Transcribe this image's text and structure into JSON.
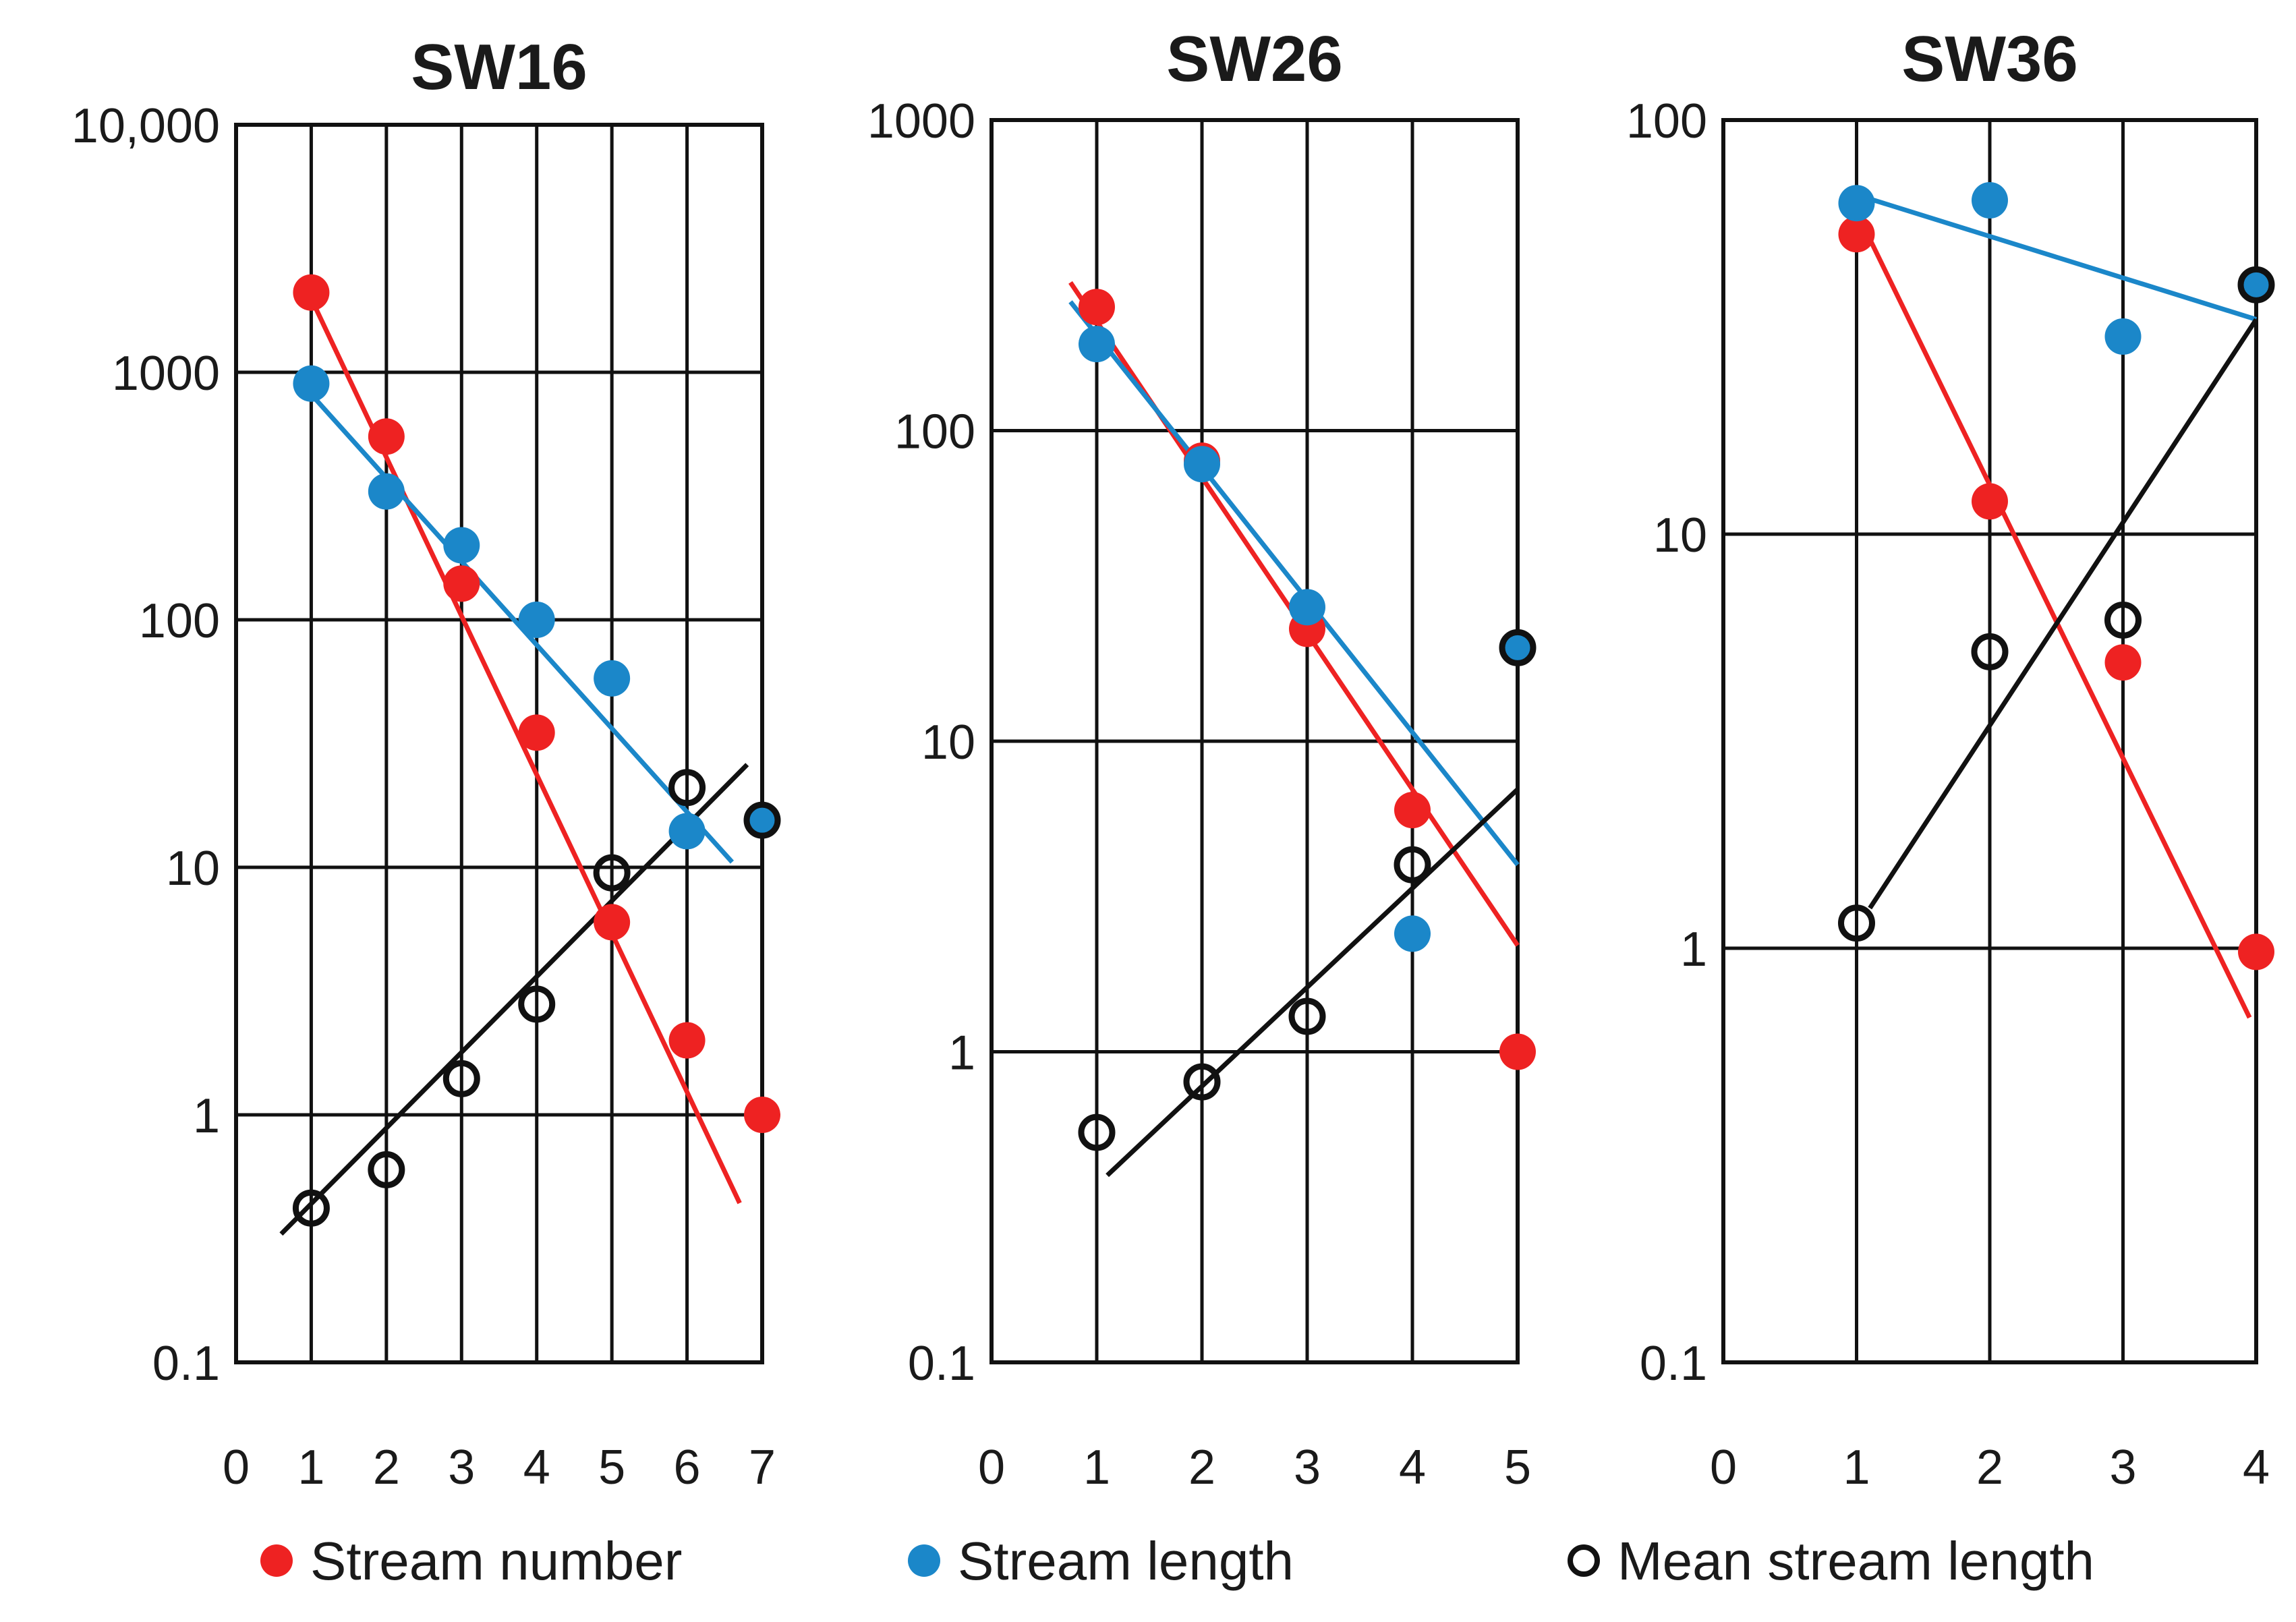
{
  "chart_data": [
    {
      "type": "scatter",
      "title": "SW16",
      "y_scale": "log",
      "ylim": [
        0.1,
        10000
      ],
      "xlim": [
        0,
        7
      ],
      "y_tick_labels": [
        "0.1",
        "1",
        "10",
        "100",
        "1000",
        "10,000"
      ],
      "x_tick_labels": [
        "0",
        "1",
        "2",
        "3",
        "4",
        "5",
        "6",
        "7"
      ],
      "series": [
        {
          "name": "Stream number",
          "color": "#ee2222",
          "marker": "filled",
          "x": [
            1,
            2,
            3,
            4,
            5,
            6,
            7
          ],
          "values": [
            2100,
            550,
            140,
            35,
            6,
            2,
            1
          ],
          "trend": {
            "x": [
              0.9,
              6.7
            ],
            "y": [
              2300,
              0.44
            ]
          }
        },
        {
          "name": "Stream length",
          "color": "#1b87c9",
          "marker": "filled",
          "x": [
            1,
            2,
            3,
            4,
            5,
            6,
            7
          ],
          "values": [
            900,
            330,
            200,
            100,
            58,
            14,
            15.5
          ],
          "trend": {
            "x": [
              0.9,
              6.6
            ],
            "y": [
              880,
              10.5
            ]
          }
        },
        {
          "name": "Mean stream length",
          "color": "#111111",
          "marker": "open",
          "x": [
            1,
            2,
            3,
            4,
            5,
            6,
            7
          ],
          "values": [
            0.42,
            0.6,
            1.4,
            2.8,
            9.5,
            21,
            15.5
          ],
          "trend": {
            "x": [
              0.6,
              6.8
            ],
            "y": [
              0.33,
              26
            ]
          }
        }
      ]
    },
    {
      "type": "scatter",
      "title": "SW26",
      "y_scale": "log",
      "ylim": [
        0.1,
        1000
      ],
      "xlim": [
        0,
        5
      ],
      "y_tick_labels": [
        "0.1",
        "1",
        "10",
        "100",
        "1000"
      ],
      "x_tick_labels": [
        "0",
        "1",
        "2",
        "3",
        "4",
        "5"
      ],
      "series": [
        {
          "name": "Stream number",
          "color": "#ee2222",
          "marker": "filled",
          "x": [
            1,
            2,
            3,
            4,
            5
          ],
          "values": [
            250,
            80,
            23,
            6,
            1
          ],
          "trend": {
            "x": [
              0.75,
              5
            ],
            "y": [
              300,
              2.2
            ]
          }
        },
        {
          "name": "Stream length",
          "color": "#1b87c9",
          "marker": "filled",
          "x": [
            1,
            2,
            3,
            4,
            5
          ],
          "values": [
            190,
            78,
            27,
            2.4,
            20
          ],
          "trend": {
            "x": [
              0.75,
              5
            ],
            "y": [
              260,
              4
            ]
          }
        },
        {
          "name": "Mean stream length",
          "color": "#111111",
          "marker": "open",
          "x": [
            1,
            2,
            3,
            4,
            5
          ],
          "values": [
            0.55,
            0.8,
            1.3,
            4,
            20
          ],
          "trend": {
            "x": [
              1.1,
              5
            ],
            "y": [
              0.4,
              7
            ]
          }
        }
      ]
    },
    {
      "type": "scatter",
      "title": "SW36",
      "y_scale": "log",
      "ylim": [
        0.1,
        100
      ],
      "xlim": [
        0,
        4
      ],
      "y_tick_labels": [
        "0.1",
        "1",
        "10",
        "100"
      ],
      "x_tick_labels": [
        "0",
        "1",
        "2",
        "3",
        "4"
      ],
      "series": [
        {
          "name": "Stream number",
          "color": "#ee2222",
          "marker": "filled",
          "x": [
            1,
            2,
            3,
            4
          ],
          "values": [
            53,
            12,
            4.9,
            0.98
          ],
          "trend": {
            "x": [
              1,
              3.95
            ],
            "y": [
              60,
              0.68
            ]
          }
        },
        {
          "name": "Stream length",
          "color": "#1b87c9",
          "marker": "filled",
          "x": [
            1,
            2,
            3,
            4
          ],
          "values": [
            63,
            64,
            30,
            40
          ],
          "trend": {
            "x": [
              1,
              4
            ],
            "y": [
              66,
              33
            ]
          }
        },
        {
          "name": "Mean stream length",
          "color": "#111111",
          "marker": "open",
          "x": [
            1,
            2,
            3,
            4
          ],
          "values": [
            1.15,
            5.2,
            6.2,
            40
          ],
          "trend": {
            "x": [
              1.1,
              4
            ],
            "y": [
              1.25,
              33
            ]
          }
        }
      ]
    }
  ],
  "legend": [
    {
      "label": "Stream number",
      "color": "#ee2222",
      "marker": "filled"
    },
    {
      "label": "Stream length",
      "color": "#1b87c9",
      "marker": "filled"
    },
    {
      "label": "Mean stream length",
      "color": "#111111",
      "marker": "open"
    }
  ]
}
